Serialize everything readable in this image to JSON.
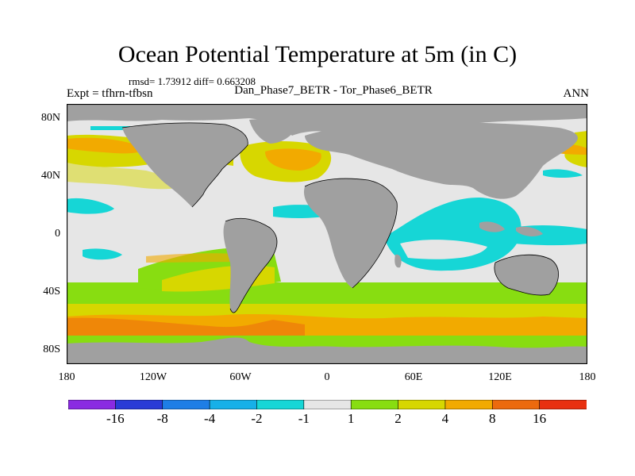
{
  "title": "Ocean Potential Temperature at 5m (in C)",
  "stats": "rmsd= 1.73912 diff= 0.663208",
  "expt": "Expt = tfhrn-tfbsn",
  "cases": "Dan_Phase7_BETR - Tor_Phase6_BETR",
  "season": "ANN",
  "axes": {
    "x_ticks": [
      "180",
      "120W",
      "60W",
      "0",
      "60E",
      "120E",
      "180"
    ],
    "y_ticks": [
      "80N",
      "40N",
      "0",
      "40S",
      "80S"
    ]
  },
  "colorbar": {
    "colors": [
      "#8a2be2",
      "#2a3bd6",
      "#1e7ee6",
      "#16b0e8",
      "#16d6d6",
      "#e6e6e6",
      "#88dd11",
      "#d7d700",
      "#f2aa00",
      "#ec6a0e",
      "#e83010"
    ],
    "labels": [
      "-16",
      "-8",
      "-4",
      "-2",
      "-1",
      "1",
      "2",
      "4",
      "8",
      "16"
    ]
  },
  "palette": {
    "land": "#a0a0a0",
    "neutral": "#e6e6e6",
    "cyan": "#16d6d6",
    "light_blue": "#16b0e8",
    "green": "#88dd11",
    "yellow": "#d7d700",
    "orange": "#f2aa00",
    "dark_orange": "#ec6a0e"
  }
}
